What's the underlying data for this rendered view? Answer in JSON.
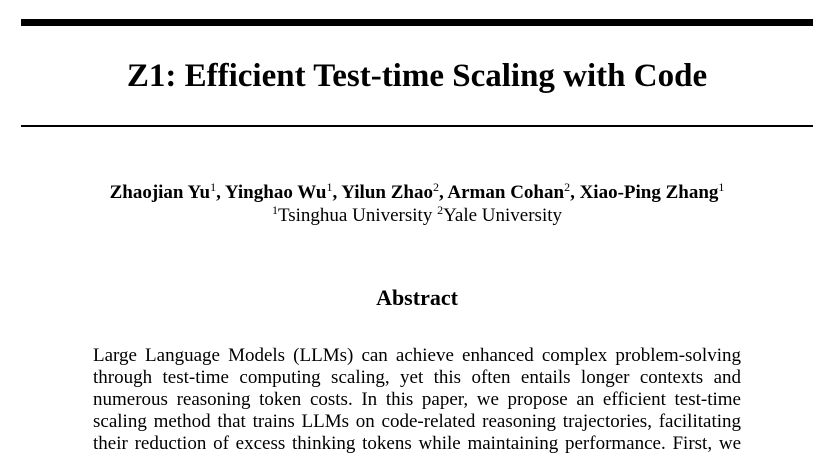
{
  "title": "Z1: Efficient Test-time Scaling with Code",
  "authors": [
    {
      "name": "Zhaojian Yu",
      "sup": "1",
      "sep": ", "
    },
    {
      "name": "Yinghao Wu",
      "sup": "1",
      "sep": ", "
    },
    {
      "name": "Yilun Zhao",
      "sup": "2",
      "sep": ", "
    },
    {
      "name": "Arman Cohan",
      "sup": "2",
      "sep": ", "
    },
    {
      "name": "Xiao-Ping Zhang",
      "sup": "1",
      "sep": ""
    }
  ],
  "affiliations": [
    {
      "sup": "1",
      "name": "Tsinghua University "
    },
    {
      "sup": "2",
      "name": "Yale University"
    }
  ],
  "abstract": {
    "heading": "Abstract",
    "lines": [
      "Large Language Models (LLMs) can achieve enhanced complex problem-solving",
      "through test-time computing scaling, yet this often entails longer contexts and",
      "numerous reasoning token costs. In this paper, we propose an efficient test-time",
      "scaling method that trains LLMs on code-related reasoning trajectories, facilitating",
      "their reduction of excess thinking tokens while maintaining performance. First, we"
    ]
  }
}
